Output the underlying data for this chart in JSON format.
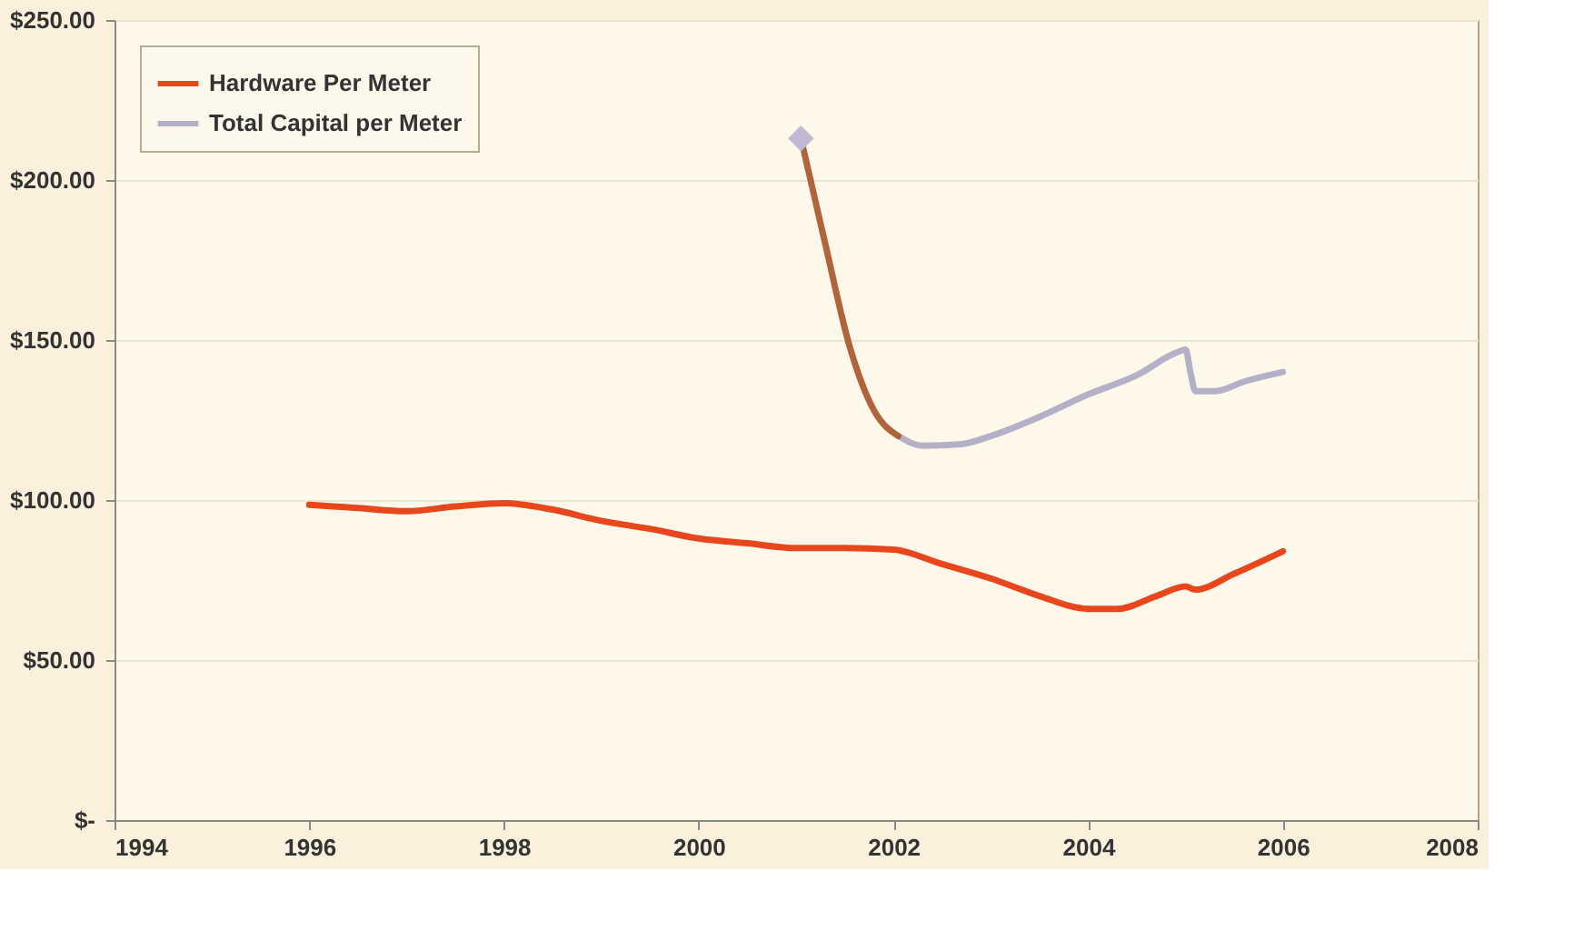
{
  "chart_data": {
    "type": "line",
    "xlim": [
      1994,
      2008
    ],
    "xticks": [
      1994,
      1996,
      1998,
      2000,
      2002,
      2004,
      2006,
      2008
    ],
    "ylim": [
      0,
      250
    ],
    "yticks": [
      {
        "value": 0,
        "label": "$-"
      },
      {
        "value": 50,
        "label": "$50.00"
      },
      {
        "value": 100,
        "label": "$100.00"
      },
      {
        "value": 150,
        "label": "$150.00"
      },
      {
        "value": 200,
        "label": "$200.00"
      },
      {
        "value": 250,
        "label": "$250.00"
      }
    ],
    "grid": "y",
    "legend": "top left",
    "line_style": "solid",
    "series": [
      {
        "name": "Hardware Per Meter",
        "color": "#e8461c",
        "x": [
          1996,
          1996.5,
          1997,
          1997.5,
          1998,
          1998.5,
          1999,
          1999.5,
          2000,
          2000.5,
          2001,
          2001.5,
          2002,
          2002.5,
          2003,
          2003.5,
          2004,
          2004.3,
          2004.7,
          2005,
          2005.1,
          2005.5,
          2006
        ],
        "values": [
          98.5,
          97.5,
          96.5,
          98,
          99,
          97,
          93.5,
          91,
          88,
          86.5,
          85,
          85,
          84.5,
          80,
          75.5,
          70,
          66,
          66,
          70,
          73,
          72,
          77,
          84
        ]
      },
      {
        "name": "Total Capital per Meter",
        "color": "#b4b0c8",
        "x": [
          2002.05,
          2002.3,
          2002.7,
          2003,
          2003.5,
          2004,
          2004.5,
          2004.9,
          2005,
          2005.05,
          2005.1,
          2005.3,
          2005.6,
          2006
        ],
        "values": [
          120,
          117,
          117.5,
          120,
          126,
          133,
          139,
          146,
          147,
          140,
          134,
          134,
          137,
          140
        ]
      },
      {
        "color": "#b0643c",
        "x": [
          2001.05,
          2001.3,
          2001.55,
          2001.8,
          2002.05
        ],
        "values": [
          213,
          180,
          148,
          128,
          120
        ]
      },
      {
        "type": "scatter",
        "marker": "diamond",
        "color": "#c0b8d4",
        "x": [
          2001.05
        ],
        "values": [
          213
        ]
      }
    ]
  }
}
